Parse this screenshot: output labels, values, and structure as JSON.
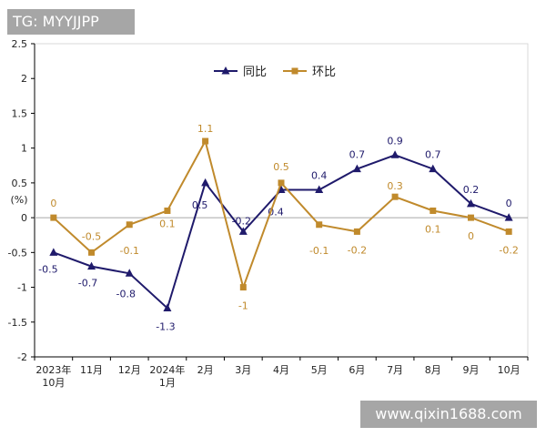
{
  "watermark_top": "TG: MYYJJPP",
  "watermark_bottom": "www.qixin1688.com",
  "colors": {
    "yoy": "#1f1a6b",
    "mom": "#c08a2c",
    "zero": "#a6a6a6",
    "axis": "#000000"
  },
  "chart_data": {
    "type": "line",
    "title": "",
    "ylabel": "(%)",
    "ylim": [
      -2,
      2.5
    ],
    "yticks": [
      -2,
      -1.5,
      -1,
      -0.5,
      0,
      0.5,
      1,
      1.5,
      2,
      2.5
    ],
    "ytick_labels": [
      "-2",
      "-1.5",
      "-1",
      "-0.5",
      "0",
      "0.5",
      "1",
      "1.5",
      "2",
      "2.5"
    ],
    "categories": [
      [
        "2023年",
        "10月"
      ],
      [
        "11月"
      ],
      [
        "12月"
      ],
      [
        "2024年",
        "1月"
      ],
      [
        "2月"
      ],
      [
        "3月"
      ],
      [
        "4月"
      ],
      [
        "5月"
      ],
      [
        "6月"
      ],
      [
        "7月"
      ],
      [
        "8月"
      ],
      [
        "9月"
      ],
      [
        "10月"
      ]
    ],
    "legend_position": "top-center",
    "grid": false,
    "series": [
      {
        "name": "同比",
        "marker": "triangle",
        "values": [
          -0.5,
          -0.7,
          -0.8,
          -1.3,
          0.5,
          -0.2,
          0.4,
          0.4,
          0.7,
          0.9,
          0.7,
          0.2,
          0
        ],
        "labels": [
          "-0.5",
          "-0.7",
          "-0.8",
          "-1.3",
          "0.5",
          "-0.2",
          "0.4",
          "0.4",
          "0.7",
          "0.9",
          "0.7",
          "0.2",
          "0"
        ]
      },
      {
        "name": "环比",
        "marker": "square",
        "values": [
          0,
          -0.5,
          -0.1,
          0.1,
          1.1,
          -1,
          0.5,
          -0.1,
          -0.2,
          0.3,
          0.1,
          0,
          -0.2
        ],
        "labels": [
          "0",
          "-0.5",
          "-0.1",
          "0.1",
          "1.1",
          "-1",
          "0.5",
          "-0.1",
          "-0.2",
          "0.3",
          "0.1",
          "0",
          "-0.2"
        ]
      }
    ]
  }
}
